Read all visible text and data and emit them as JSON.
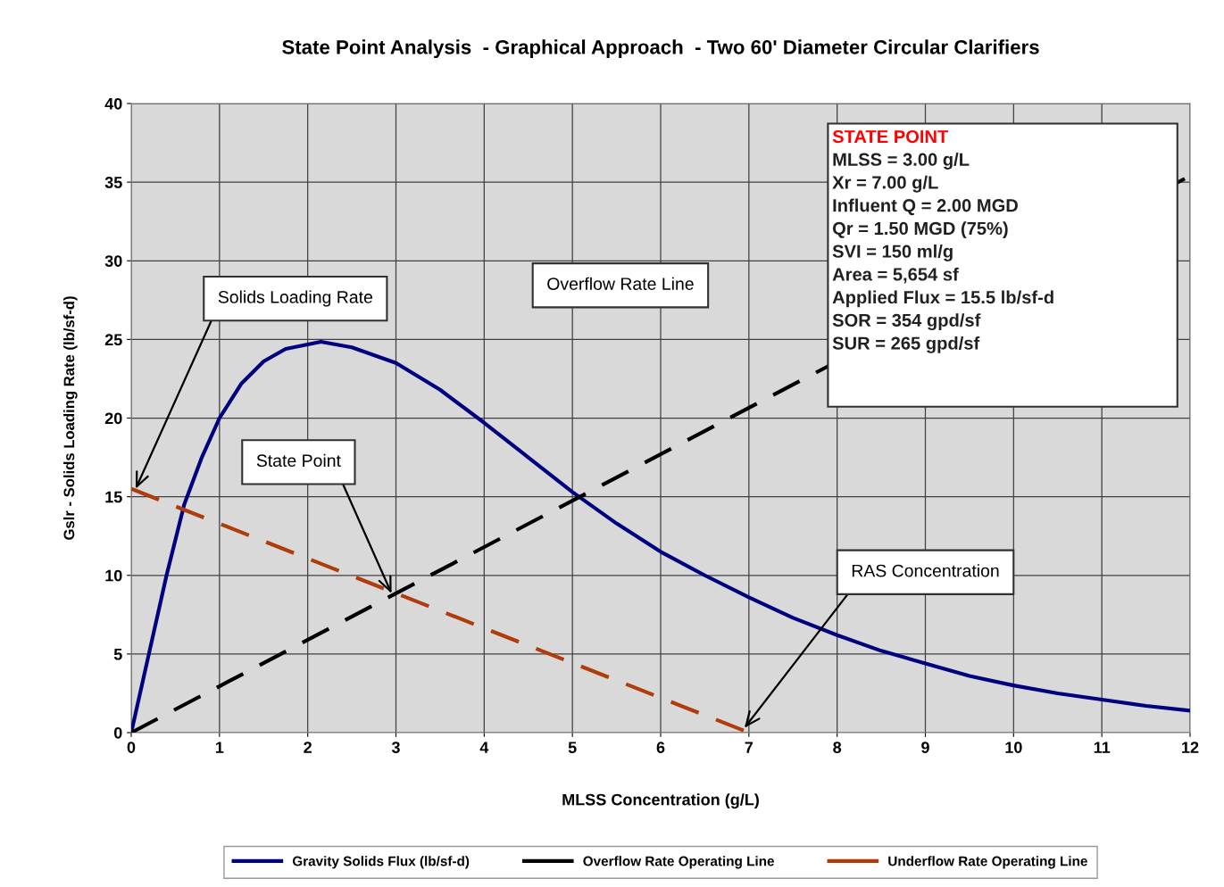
{
  "chart_data": {
    "type": "line",
    "title": "State Point Analysis  - Graphical Approach  - Two 60' Diameter Circular Clarifiers",
    "xlabel": "MLSS Concentration (g/L)",
    "ylabel": "Gslr - Solids Loading Rate (lb/sf-d)",
    "xlim": [
      0,
      12
    ],
    "ylim": [
      0,
      40
    ],
    "xticks": [
      0,
      1,
      2,
      3,
      4,
      5,
      6,
      7,
      8,
      9,
      10,
      11,
      12
    ],
    "yticks": [
      0,
      5,
      10,
      15,
      20,
      25,
      30,
      35,
      40
    ],
    "grid": true,
    "legend": "bottom",
    "marker": "none",
    "series": [
      {
        "name": "Gravity Solids Flux (lb/sf-d)",
        "color": "#000080",
        "line_style": "solid",
        "x": [
          0,
          0.2,
          0.4,
          0.6,
          0.8,
          1,
          1.25,
          1.5,
          1.75,
          2.15,
          2.5,
          3,
          3.5,
          4,
          4.5,
          5,
          5.5,
          6,
          6.5,
          7,
          7.5,
          8,
          8.5,
          9,
          9.5,
          10,
          10.5,
          11,
          11.5,
          12
        ],
        "values": [
          0,
          5,
          10,
          14.5,
          17.5,
          20,
          22.2,
          23.6,
          24.4,
          24.85,
          24.5,
          23.5,
          21.8,
          19.7,
          17.5,
          15.3,
          13.3,
          11.5,
          10,
          8.6,
          7.3,
          6.2,
          5.2,
          4.4,
          3.6,
          3.0,
          2.5,
          2.1,
          1.7,
          1.4
        ]
      },
      {
        "name": "Overflow Rate Operating Line",
        "color": "#000000",
        "line_style": "dashed",
        "x": [
          0,
          12
        ],
        "values": [
          0,
          35.4
        ]
      },
      {
        "name": "Underflow Rate Operating Line",
        "color": "#b03c0c",
        "line_style": "dashed",
        "x": [
          0,
          7
        ],
        "values": [
          15.5,
          0
        ]
      }
    ],
    "annotations": [
      {
        "text": "Solids Loading Rate",
        "x": 0.05,
        "y": 15.5
      },
      {
        "text": "State Point",
        "x": 2.95,
        "y": 8.85
      },
      {
        "text": "RAS Concentration",
        "x": 6.95,
        "y": 0.3
      },
      "Overflow Rate Line",
      "STATE POINT",
      "MLSS = 3.00 g/L",
      "Xr = 7.00 g/L",
      "Influent Q = 2.00 MGD",
      "Qr = 1.50 MGD (75%)",
      "SVI = 150 ml/g",
      "Area = 5,654 sf",
      "Applied Flux = 15.5 lb/sf-d",
      "SOR = 354 gpd/sf",
      "SUR = 265 gpd/sf"
    ]
  }
}
